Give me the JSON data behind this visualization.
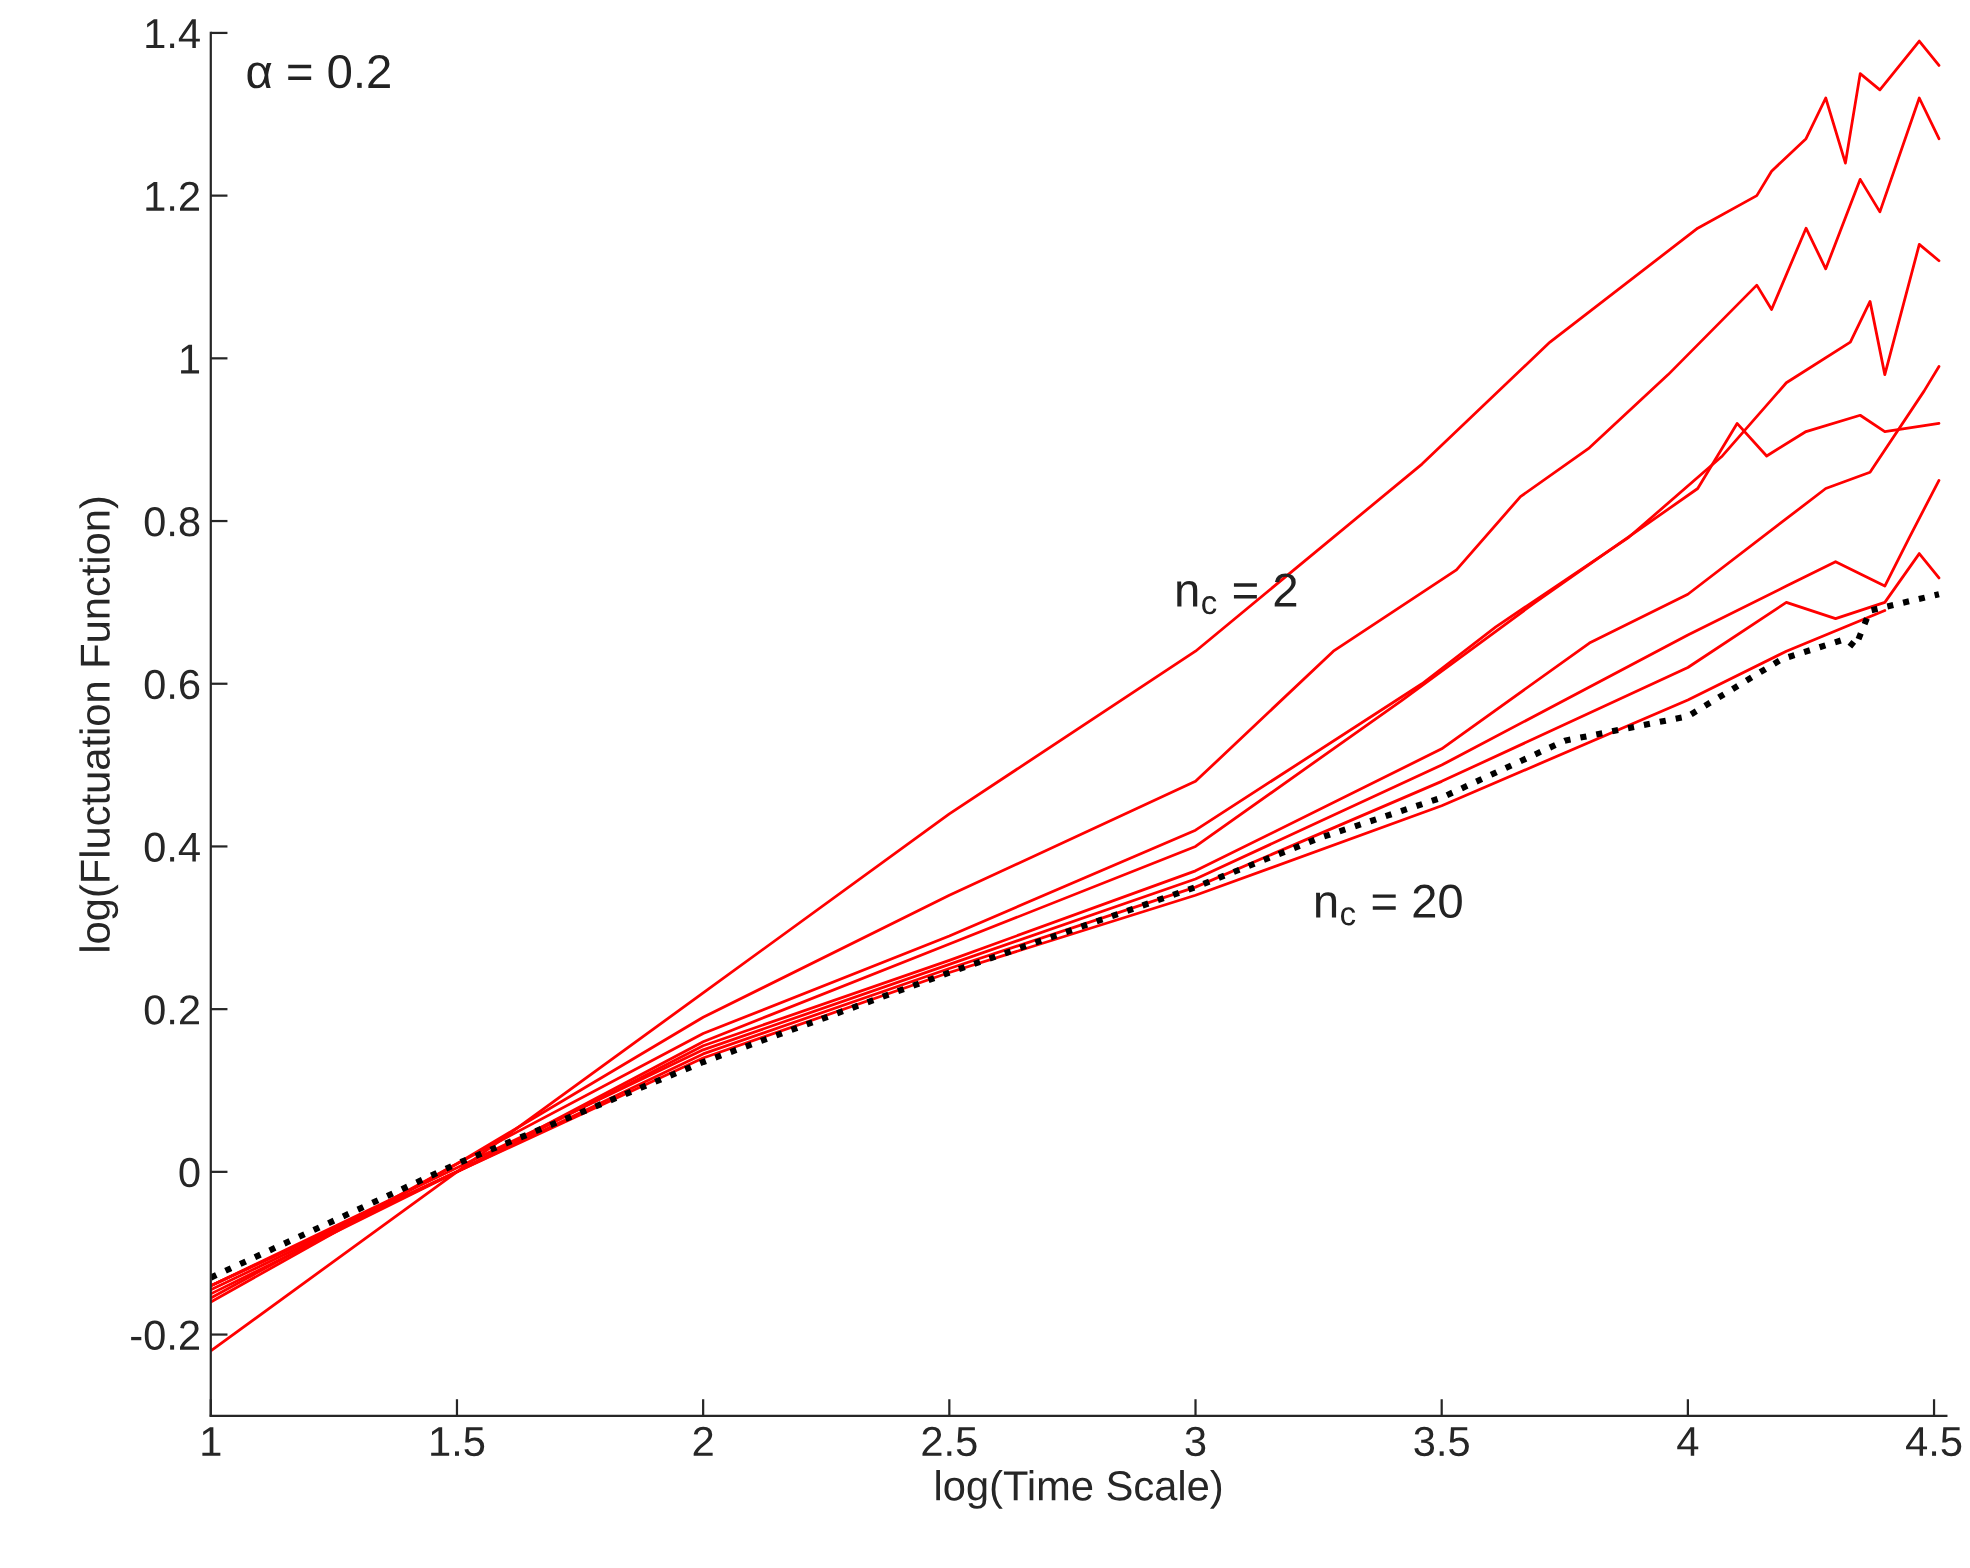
{
  "chart_data": {
    "type": "line",
    "xlabel": "log(Time Scale)",
    "ylabel": "log(Fluctuation Function)",
    "annotations": [
      "α = 0.2",
      "n$_{c}$ = 2",
      "n$_{c}$ = 20"
    ],
    "series": [
      {
        "color": "#ff0000",
        "line_style": "solid",
        "x": [
          1,
          1.5,
          2,
          2.5,
          3,
          3.46,
          3.72,
          4.02,
          4.14,
          4.17,
          4.24,
          4.28,
          4.32,
          4.35,
          4.39,
          4.47,
          4.51
        ],
        "values": [
          -0.22,
          0.0,
          0.22,
          0.44,
          0.64,
          0.87,
          1.02,
          1.16,
          1.2,
          1.23,
          1.27,
          1.32,
          1.24,
          1.35,
          1.33,
          1.39,
          1.36
        ]
      },
      {
        "color": "#ff0000",
        "line_style": "solid",
        "x": [
          1,
          1.5,
          2,
          2.5,
          3,
          3.28,
          3.53,
          3.66,
          3.8,
          3.96,
          4.14,
          4.17,
          4.24,
          4.28,
          4.35,
          4.39,
          4.47,
          4.51
        ],
        "values": [
          -0.16,
          0.01,
          0.19,
          0.34,
          0.48,
          0.64,
          0.74,
          0.83,
          0.89,
          0.98,
          1.09,
          1.06,
          1.16,
          1.11,
          1.22,
          1.18,
          1.32,
          1.27
        ]
      },
      {
        "color": "#ff0000",
        "line_style": "solid",
        "x": [
          1,
          1.5,
          2,
          2.5,
          3,
          3.46,
          3.61,
          3.88,
          4.07,
          4.2,
          4.33,
          4.37,
          4.4,
          4.47,
          4.51
        ],
        "values": [
          -0.155,
          0.01,
          0.17,
          0.29,
          0.42,
          0.6,
          0.67,
          0.78,
          0.88,
          0.97,
          1.02,
          1.07,
          0.98,
          1.14,
          1.12
        ]
      },
      {
        "color": "#ff0000",
        "line_style": "solid",
        "x": [
          1,
          1.5,
          2,
          2.5,
          3,
          3.42,
          3.69,
          4.02,
          4.1,
          4.16,
          4.24,
          4.35,
          4.4,
          4.51
        ],
        "values": [
          -0.15,
          0.0,
          0.16,
          0.28,
          0.4,
          0.58,
          0.7,
          0.84,
          0.92,
          0.88,
          0.91,
          0.93,
          0.91,
          0.92
        ]
      },
      {
        "color": "#ff0000",
        "line_style": "solid",
        "x": [
          1,
          1.5,
          2,
          2.5,
          3,
          3.5,
          3.8,
          4.0,
          4.28,
          4.37,
          4.48,
          4.51
        ],
        "values": [
          -0.145,
          0.0,
          0.155,
          0.26,
          0.37,
          0.52,
          0.65,
          0.71,
          0.84,
          0.86,
          0.96,
          0.99
        ]
      },
      {
        "color": "#ff0000",
        "line_style": "solid",
        "x": [
          1,
          1.5,
          2,
          2.5,
          3,
          3.5,
          4.0,
          4.2,
          4.3,
          4.4,
          4.45,
          4.51
        ],
        "values": [
          -0.14,
          0.005,
          0.15,
          0.255,
          0.36,
          0.5,
          0.66,
          0.72,
          0.75,
          0.72,
          0.78,
          0.85
        ]
      },
      {
        "color": "#ff0000",
        "line_style": "solid",
        "x": [
          1,
          1.5,
          2,
          2.5,
          3,
          3.5,
          4.0,
          4.2,
          4.3,
          4.4,
          4.47,
          4.51
        ],
        "values": [
          -0.14,
          0.0,
          0.145,
          0.25,
          0.35,
          0.48,
          0.62,
          0.7,
          0.68,
          0.7,
          0.76,
          0.73
        ]
      },
      {
        "color": "#ff0000",
        "line_style": "solid",
        "x": [
          1,
          1.5,
          2,
          2.5,
          3,
          3.5,
          4.0,
          4.2,
          4.4
        ],
        "values": [
          -0.14,
          0.0,
          0.14,
          0.245,
          0.34,
          0.45,
          0.58,
          0.64,
          0.69
        ]
      },
      {
        "color": "#000000",
        "line_style": "dotted",
        "x": [
          1,
          1.5,
          2,
          2.5,
          3,
          3.25,
          3.5,
          3.75,
          4.0,
          4.19,
          4.32,
          4.34,
          4.37,
          4.51
        ],
        "values": [
          -0.13,
          0.01,
          0.135,
          0.245,
          0.35,
          0.41,
          0.46,
          0.53,
          0.56,
          0.63,
          0.655,
          0.645,
          0.69,
          0.71
        ]
      }
    ],
    "xlim": [
      1,
      4.525
    ],
    "ylim": [
      -0.3,
      1.4
    ],
    "xticks": [
      1,
      1.5,
      2,
      2.5,
      3,
      3.5,
      4,
      4.5
    ],
    "yticks": [
      -0.2,
      0,
      0.2,
      0.4,
      0.6,
      0.8,
      1,
      1.2,
      1.4
    ],
    "grid": false,
    "legend": false,
    "marker": "none"
  }
}
